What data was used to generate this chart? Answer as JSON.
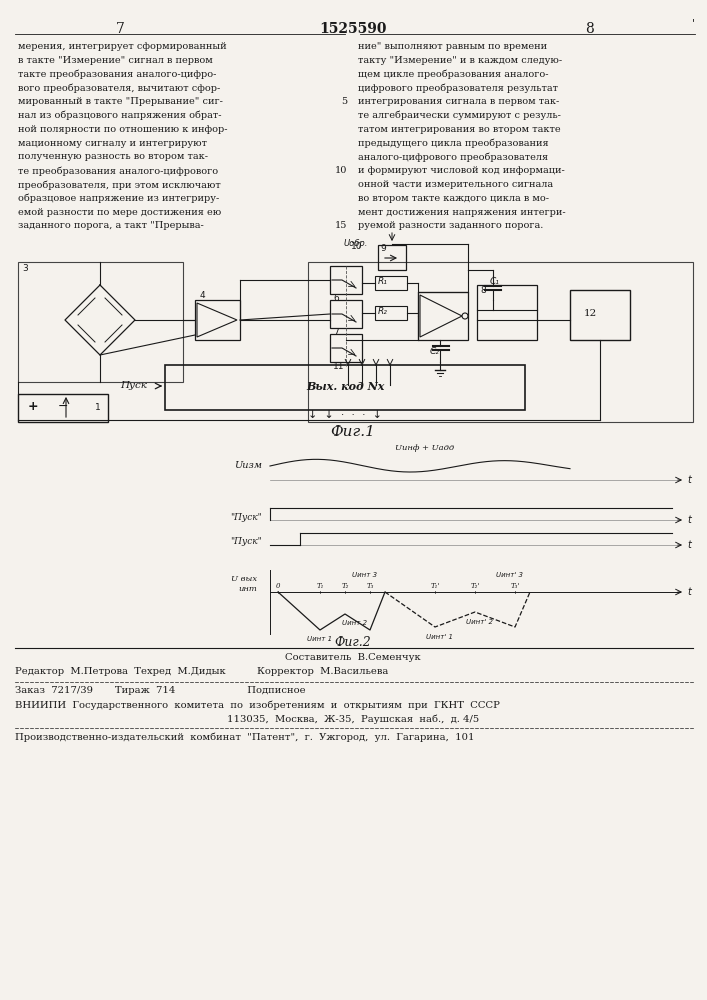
{
  "page_numbers": [
    "7",
    "1525590",
    "8"
  ],
  "left_text": [
    "мерения, интегрирует сформированный",
    "в такте \"Измерение\" сигнал в первом",
    "такте преобразования аналого-цифро-",
    "вого преобразователя, вычитают сфор-",
    "мированный в такте \"Прерывание\" сиг-",
    "нал из образцового напряжения обрат-",
    "ной полярности по отношению к инфор-",
    "мационному сигналу и интегрируют",
    "полученную разность во втором так-",
    "те преобразования аналого-цифрового",
    "преобразователя, при этом исключают",
    "образцовое напряжение из интегриру-",
    "емой разности по мере достижения ею",
    "заданного порога, а такт \"Прерыва-"
  ],
  "right_text": [
    "ние\" выполняют равным по времени",
    "такту \"Измерение\" и в каждом следую-",
    "щем цикле преобразования аналого-",
    "цифрового преобразователя результат",
    "интегрирования сигнала в первом так-",
    "те алгебраически суммируют с резуль-",
    "татом интегрирования во втором такте",
    "предыдущего цикла преобразования",
    "аналого-цифрового преобразователя",
    "и формируют числовой код информаци-",
    "онной части измерительного сигнала",
    "во втором такте каждого цикла в мо-",
    "мент достижения напряжения интегри-",
    "руемой разности заданного порога."
  ],
  "bg_color": "#f5f2ed",
  "text_color": "#1a1a1a"
}
